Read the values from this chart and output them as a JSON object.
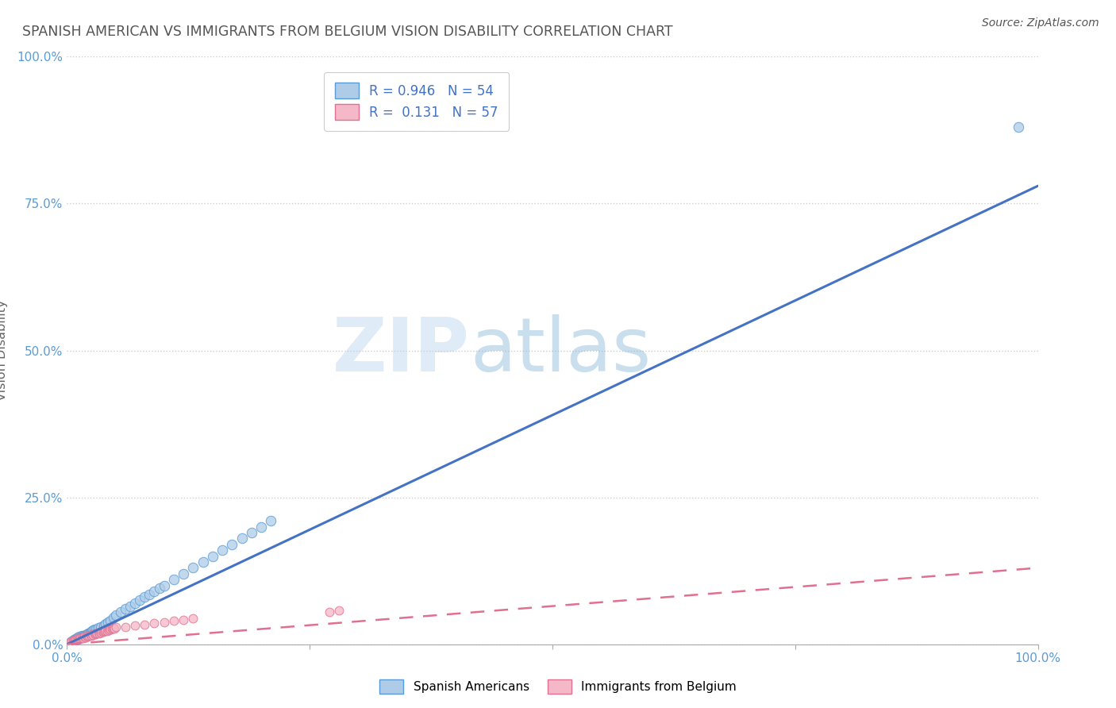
{
  "title": "SPANISH AMERICAN VS IMMIGRANTS FROM BELGIUM VISION DISABILITY CORRELATION CHART",
  "source": "Source: ZipAtlas.com",
  "ylabel": "Vision Disability",
  "xlim": [
    0,
    1
  ],
  "ylim": [
    0,
    1
  ],
  "background_color": "#ffffff",
  "plot_bg_color": "#ffffff",
  "grid_color": "#c8c8c8",
  "title_color": "#555555",
  "title_fontsize": 12.5,
  "source_fontsize": 10,
  "axis_label_color": "#5b9bd5",
  "legend_r1": "R = 0.946",
  "legend_n1": "N = 54",
  "legend_r2": "R =  0.131",
  "legend_n2": "N = 57",
  "blue_color": "#aecce8",
  "blue_edge_color": "#5b9bd5",
  "pink_color": "#f4b8c8",
  "pink_edge_color": "#e07090",
  "blue_line_color": "#4472c4",
  "pink_line_color": "#e07090",
  "blue_trend_x": [
    0.0,
    1.0
  ],
  "blue_trend_y": [
    0.0,
    0.78
  ],
  "pink_trend_x": [
    0.0,
    1.0
  ],
  "pink_trend_y": [
    0.0,
    0.13
  ],
  "blue_scatter_x": [
    0.005,
    0.007,
    0.008,
    0.009,
    0.01,
    0.011,
    0.012,
    0.013,
    0.014,
    0.015,
    0.016,
    0.017,
    0.018,
    0.019,
    0.02,
    0.021,
    0.022,
    0.023,
    0.024,
    0.025,
    0.026,
    0.027,
    0.028,
    0.03,
    0.032,
    0.035,
    0.038,
    0.04,
    0.042,
    0.045,
    0.048,
    0.05,
    0.055,
    0.06,
    0.065,
    0.07,
    0.075,
    0.08,
    0.085,
    0.09,
    0.095,
    0.1,
    0.11,
    0.12,
    0.13,
    0.14,
    0.15,
    0.16,
    0.17,
    0.18,
    0.19,
    0.2,
    0.21,
    0.98
  ],
  "blue_scatter_y": [
    0.005,
    0.008,
    0.006,
    0.009,
    0.01,
    0.012,
    0.011,
    0.013,
    0.012,
    0.014,
    0.013,
    0.015,
    0.014,
    0.016,
    0.016,
    0.017,
    0.018,
    0.019,
    0.02,
    0.021,
    0.022,
    0.024,
    0.025,
    0.025,
    0.028,
    0.03,
    0.032,
    0.035,
    0.038,
    0.04,
    0.045,
    0.05,
    0.055,
    0.06,
    0.065,
    0.07,
    0.075,
    0.08,
    0.085,
    0.09,
    0.095,
    0.1,
    0.11,
    0.12,
    0.13,
    0.14,
    0.15,
    0.16,
    0.17,
    0.18,
    0.19,
    0.2,
    0.21,
    0.88
  ],
  "pink_scatter_x": [
    0.003,
    0.005,
    0.006,
    0.007,
    0.008,
    0.009,
    0.01,
    0.011,
    0.012,
    0.013,
    0.014,
    0.015,
    0.016,
    0.017,
    0.018,
    0.019,
    0.02,
    0.021,
    0.022,
    0.023,
    0.024,
    0.025,
    0.026,
    0.027,
    0.028,
    0.029,
    0.03,
    0.031,
    0.032,
    0.033,
    0.034,
    0.035,
    0.036,
    0.037,
    0.038,
    0.039,
    0.04,
    0.041,
    0.042,
    0.043,
    0.044,
    0.045,
    0.046,
    0.047,
    0.048,
    0.049,
    0.05,
    0.06,
    0.07,
    0.08,
    0.09,
    0.1,
    0.11,
    0.12,
    0.13,
    0.27,
    0.28
  ],
  "pink_scatter_y": [
    0.004,
    0.005,
    0.006,
    0.007,
    0.006,
    0.008,
    0.009,
    0.008,
    0.01,
    0.009,
    0.011,
    0.01,
    0.012,
    0.011,
    0.013,
    0.012,
    0.014,
    0.013,
    0.015,
    0.014,
    0.016,
    0.015,
    0.017,
    0.016,
    0.018,
    0.017,
    0.019,
    0.018,
    0.02,
    0.019,
    0.021,
    0.02,
    0.022,
    0.021,
    0.023,
    0.022,
    0.024,
    0.023,
    0.025,
    0.024,
    0.026,
    0.025,
    0.027,
    0.026,
    0.028,
    0.027,
    0.029,
    0.03,
    0.032,
    0.034,
    0.036,
    0.038,
    0.04,
    0.042,
    0.044,
    0.055,
    0.058
  ],
  "watermark_zip": "ZIP",
  "watermark_atlas": "atlas",
  "legend_fontsize": 12,
  "legend_color": "#4472c4",
  "scatter_size_blue": 80,
  "scatter_size_pink": 60
}
